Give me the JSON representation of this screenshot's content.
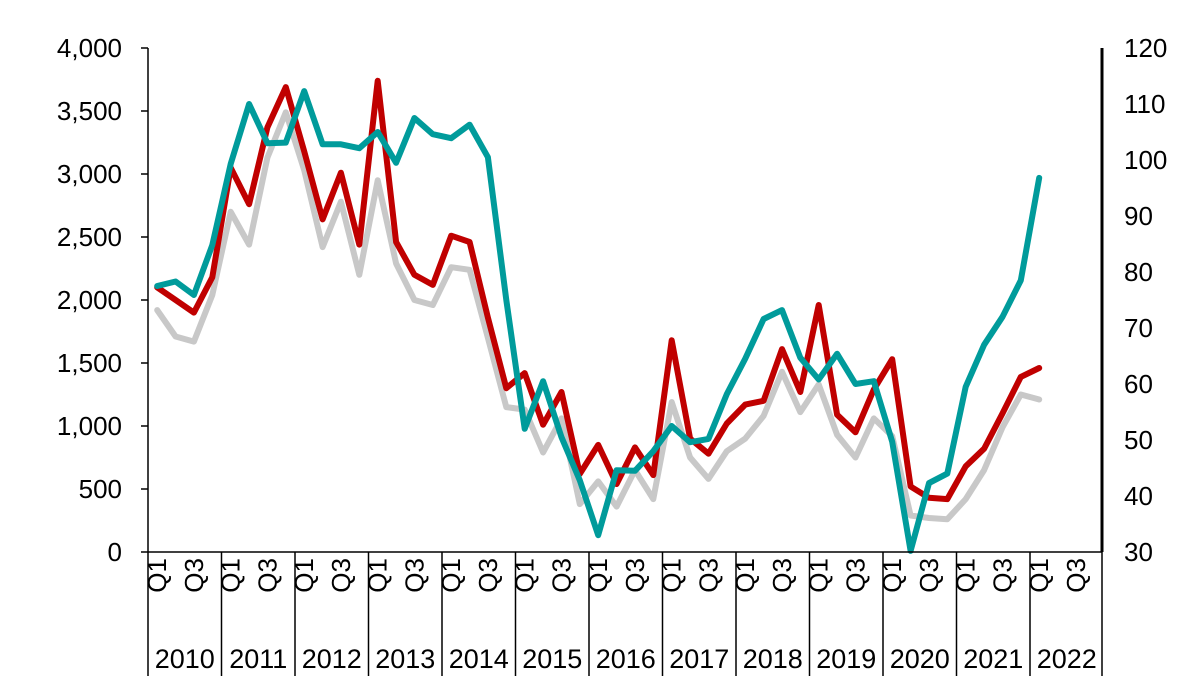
{
  "chart_data": {
    "type": "line",
    "title": "",
    "xlabel": "",
    "ylabel": "",
    "ylim": [
      0,
      4000
    ],
    "y_ticks": [
      "0",
      "500",
      "1,000",
      "1,500",
      "2,000",
      "2,500",
      "3,000",
      "3,500",
      "4,000"
    ],
    "y2lim": [
      30,
      120
    ],
    "y2_ticks": [
      "30",
      "40",
      "50",
      "60",
      "70",
      "80",
      "90",
      "100",
      "110",
      "120"
    ],
    "grid": false,
    "legend": "none",
    "quarter_labels": [
      "Q1",
      "Q3"
    ],
    "years": [
      "2010",
      "2011",
      "2012",
      "2013",
      "2014",
      "2015",
      "2016",
      "2017",
      "2018",
      "2019",
      "2020",
      "2021",
      "2022"
    ],
    "series": [
      {
        "color": "#c8c8c8",
        "axis": "left",
        "values": [
          1920,
          1710,
          1670,
          2040,
          2700,
          2440,
          3130,
          3490,
          3030,
          2420,
          2780,
          2200,
          2950,
          2290,
          2000,
          1960,
          2260,
          2240,
          1700,
          1150,
          1130,
          790,
          1060,
          380,
          560,
          360,
          650,
          420,
          1190,
          750,
          580,
          800,
          900,
          1080,
          1430,
          1110,
          1330,
          930,
          750,
          1060,
          920,
          290,
          270,
          260,
          420,
          650,
          990,
          1250,
          1210
        ]
      },
      {
        "color": "#c00000",
        "axis": "left",
        "values": [
          2100,
          2000,
          1900,
          2180,
          3050,
          2760,
          3370,
          3690,
          3180,
          2640,
          3010,
          2440,
          3740,
          2460,
          2200,
          2120,
          2510,
          2460,
          1860,
          1300,
          1420,
          1010,
          1270,
          620,
          850,
          540,
          830,
          610,
          1680,
          900,
          780,
          1020,
          1170,
          1200,
          1610,
          1270,
          1960,
          1090,
          950,
          1290,
          1530,
          520,
          430,
          420,
          680,
          820,
          1100,
          1390,
          1460
        ]
      },
      {
        "color": "#009b9b",
        "axis": "right",
        "values": [
          77.5,
          78.3,
          75.9,
          84.8,
          99.3,
          110,
          103,
          103.1,
          112.3,
          102.8,
          102.8,
          102.1,
          105,
          99.5,
          107.5,
          104.6,
          103.9,
          106.3,
          100.5,
          75,
          52,
          60.5,
          50.5,
          42.8,
          33,
          44.6,
          44.5,
          48,
          52.5,
          49.6,
          50.2,
          58.2,
          64.5,
          71.6,
          73.2,
          64.7,
          60.8,
          65.4,
          60,
          60.5,
          49.7,
          30.2,
          42.3,
          44,
          59.5,
          67,
          72,
          78.5,
          96.8
        ]
      }
    ]
  }
}
